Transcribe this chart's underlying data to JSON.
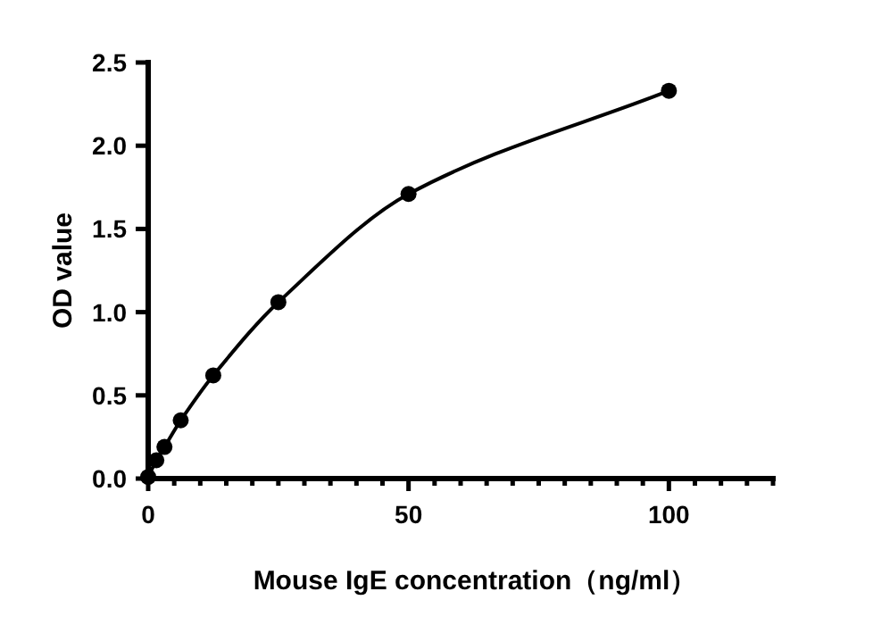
{
  "chart_data": {
    "type": "line",
    "xlabel": "Mouse IgE concentration（ng/ml）",
    "ylabel": "OD value",
    "x": [
      0,
      1.5625,
      3.125,
      6.25,
      12.5,
      25,
      50,
      100
    ],
    "series": [
      {
        "color": "#000000",
        "marker": "circle",
        "line_style": "solid",
        "values": [
          0.01,
          0.11,
          0.19,
          0.35,
          0.62,
          1.06,
          1.71,
          2.33
        ]
      }
    ],
    "xlim": [
      0,
      120
    ],
    "ylim": [
      0,
      2.5
    ],
    "xticks": [
      0,
      {
        "value": 5,
        "label": null
      },
      {
        "value": 10,
        "label": null
      },
      {
        "value": 15,
        "label": null
      },
      {
        "value": 20,
        "label": null
      },
      {
        "value": 25,
        "label": null
      },
      {
        "value": 30,
        "label": null
      },
      {
        "value": 35,
        "label": null
      },
      {
        "value": 40,
        "label": null
      },
      {
        "value": 45,
        "label": null
      },
      50,
      {
        "value": 55,
        "label": null
      },
      {
        "value": 60,
        "label": null
      },
      {
        "value": 65,
        "label": null
      },
      {
        "value": 70,
        "label": null
      },
      {
        "value": 75,
        "label": null
      },
      {
        "value": 80,
        "label": null
      },
      {
        "value": 85,
        "label": null
      },
      {
        "value": 90,
        "label": null
      },
      {
        "value": 95,
        "label": null
      },
      100,
      {
        "value": 105,
        "label": null
      },
      {
        "value": 110,
        "label": null
      },
      {
        "value": 115,
        "label": null
      },
      {
        "value": 120,
        "label": null
      }
    ],
    "yticks": [
      {
        "value": 0,
        "label": "0.0"
      },
      {
        "value": 0.5,
        "label": "0.5"
      },
      {
        "value": 1,
        "label": "1.0"
      },
      {
        "value": 1.5,
        "label": "1.5"
      },
      {
        "value": 2,
        "label": "2.0"
      },
      {
        "value": 2.5,
        "label": "2.5"
      }
    ],
    "grid": false
  }
}
